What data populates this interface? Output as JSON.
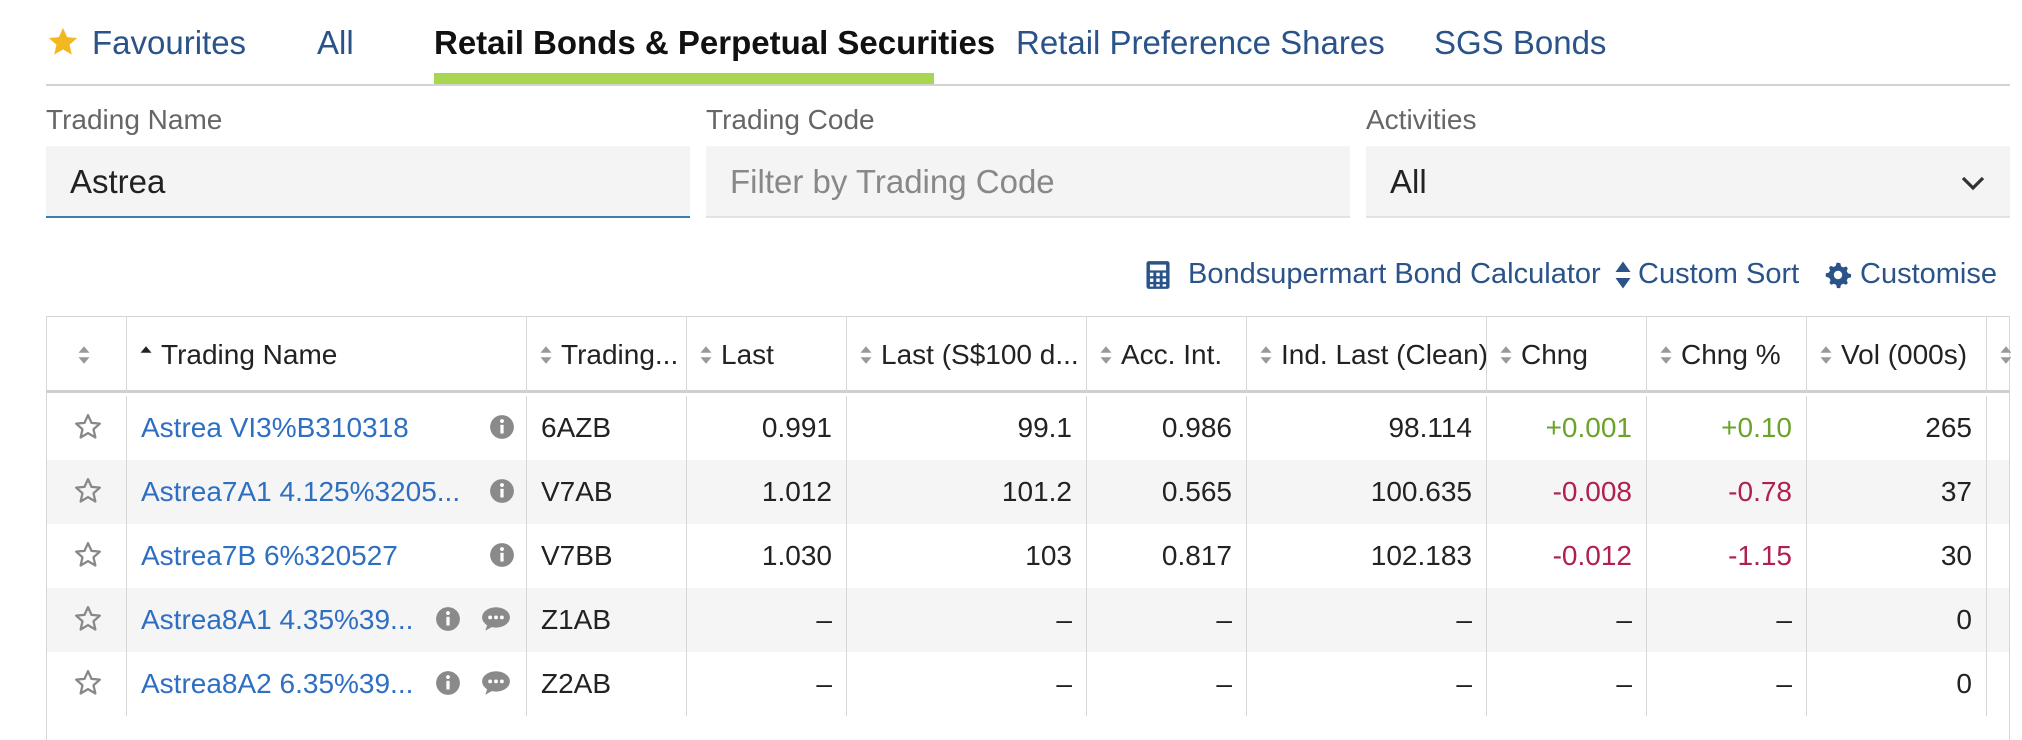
{
  "tabs": [
    {
      "label": "Favourites"
    },
    {
      "label": "All"
    },
    {
      "label": "Retail Bonds & Perpetual Securities"
    },
    {
      "label": "Retail Preference Shares"
    },
    {
      "label": "SGS Bonds"
    }
  ],
  "filters": {
    "trading_name": {
      "label": "Trading Name",
      "value": "Astrea"
    },
    "trading_code": {
      "label": "Trading Code",
      "placeholder": "Filter by Trading Code"
    },
    "activities": {
      "label": "Activities",
      "value": "All"
    }
  },
  "toolbar": {
    "calculator": "Bondsupermart Bond Calculator",
    "custom_sort": "Custom Sort",
    "customise": "Customise"
  },
  "columns": [
    "Trading Name",
    "Trading...",
    "Last",
    "Last (S$100 d...",
    "Acc. Int.",
    "Ind. Last (Clean)",
    "Chng",
    "Chng %",
    "Vol (000s)"
  ],
  "rows": [
    {
      "name": "Astrea VI3%B310318",
      "code": "6AZB",
      "last": "0.991",
      "last100": "99.1",
      "acc_int": "0.986",
      "ind_last": "98.114",
      "chng": "+0.001",
      "chng_pct": "+0.10",
      "vol": "265",
      "trend": "pos",
      "chat": false
    },
    {
      "name": "Astrea7A1 4.125%3205...",
      "code": "V7AB",
      "last": "1.012",
      "last100": "101.2",
      "acc_int": "0.565",
      "ind_last": "100.635",
      "chng": "-0.008",
      "chng_pct": "-0.78",
      "vol": "37",
      "trend": "neg",
      "chat": false
    },
    {
      "name": "Astrea7B 6%320527",
      "code": "V7BB",
      "last": "1.030",
      "last100": "103",
      "acc_int": "0.817",
      "ind_last": "102.183",
      "chng": "-0.012",
      "chng_pct": "-1.15",
      "vol": "30",
      "trend": "neg",
      "chat": false
    },
    {
      "name": "Astrea8A1 4.35%39...",
      "code": "Z1AB",
      "last": "–",
      "last100": "–",
      "acc_int": "–",
      "ind_last": "–",
      "chng": "–",
      "chng_pct": "–",
      "vol": "0",
      "trend": "none",
      "chat": true
    },
    {
      "name": "Astrea8A2 6.35%39...",
      "code": "Z2AB",
      "last": "–",
      "last100": "–",
      "acc_int": "–",
      "ind_last": "–",
      "chng": "–",
      "chng_pct": "–",
      "vol": "0",
      "trend": "none",
      "chat": true
    }
  ],
  "colors": {
    "accent": "#a9d650",
    "link": "#2e6fc2",
    "nav": "#2a5389",
    "positive": "#6aa32c",
    "negative": "#b0204e",
    "star": "#f3b81f"
  }
}
